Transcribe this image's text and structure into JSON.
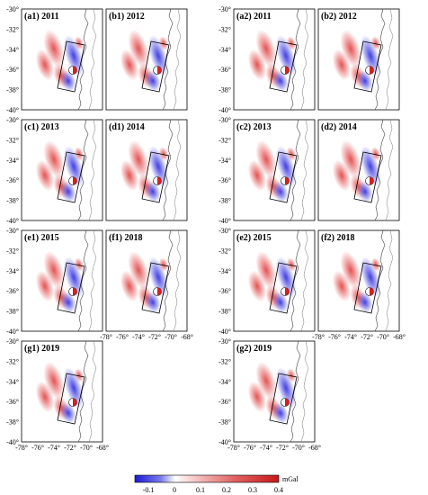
{
  "panels": [
    {
      "id": "a1",
      "label": "(a1) 2011"
    },
    {
      "id": "b1",
      "label": "(b1) 2012"
    },
    {
      "id": "a2",
      "label": "(a2) 2011"
    },
    {
      "id": "b2",
      "label": "(b2) 2012"
    },
    {
      "id": "c1",
      "label": "(c1) 2013"
    },
    {
      "id": "d1",
      "label": "(d1) 2014"
    },
    {
      "id": "c2",
      "label": "(c2) 2013"
    },
    {
      "id": "d2",
      "label": "(d2) 2014"
    },
    {
      "id": "e1",
      "label": "(e1) 2015"
    },
    {
      "id": "f1",
      "label": "(f1) 2018"
    },
    {
      "id": "e2",
      "label": "(e2) 2015"
    },
    {
      "id": "f2",
      "label": "(f2) 2018"
    },
    {
      "id": "g1",
      "label": "(g1) 2019"
    },
    {
      "id": "g2",
      "label": "(g2) 2019"
    }
  ],
  "lat_ticks": [
    "-30°",
    "-32°",
    "-34°",
    "-36°",
    "-38°",
    "-40°"
  ],
  "lon_ticks": [
    "-78°",
    "-76°",
    "-74°",
    "-72°",
    "-70°",
    "-68°"
  ],
  "colorbar": {
    "unit": "mGal",
    "ticks": [
      "-0.1",
      "0",
      "0.1",
      "0.2",
      "0.3",
      "0.4"
    ],
    "colors": {
      "low": "#1a1ad6",
      "mid": "#ffffff",
      "high": "#c81818"
    }
  }
}
